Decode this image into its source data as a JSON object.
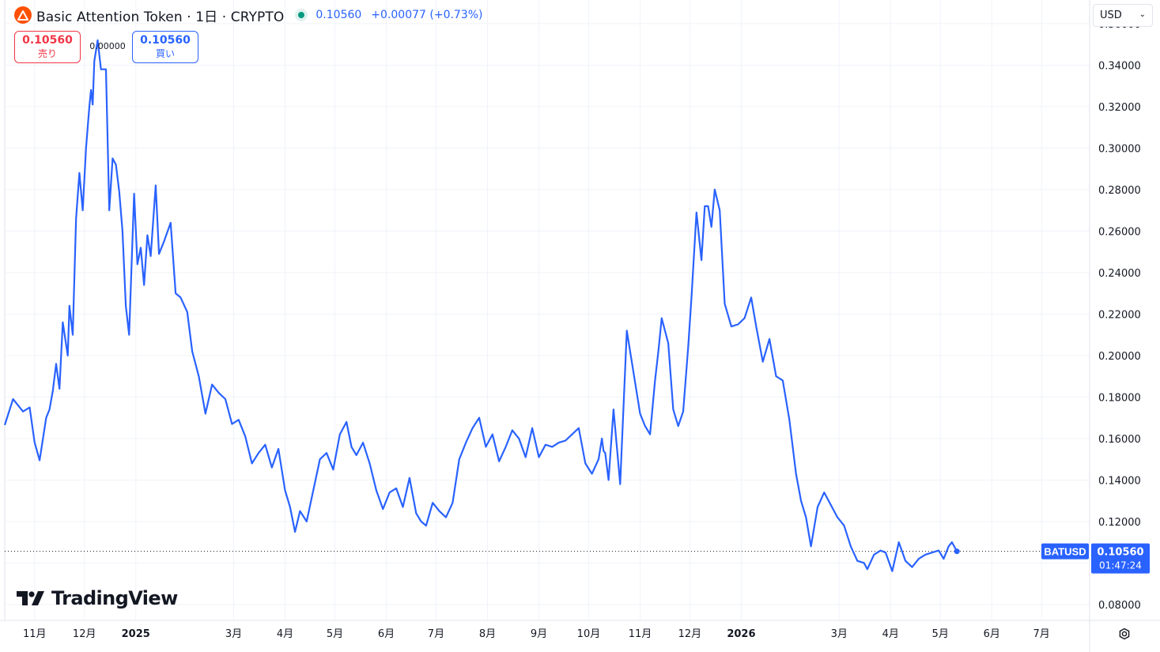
{
  "header": {
    "symbol_title": "Basic Attention Token · 1日 · CRYPTO",
    "last_price": "0.10560",
    "change": "+0.00077 (+0.73%)"
  },
  "trade": {
    "sell_price": "0.10560",
    "sell_label": "売り",
    "spread": "0.00000",
    "buy_price": "0.10560",
    "buy_label": "買い"
  },
  "currency": {
    "selected": "USD"
  },
  "last_label": {
    "symbol": "BATUSD",
    "price": "0.10560",
    "countdown": "01:47:24"
  },
  "branding": {
    "name": "TradingView"
  },
  "colors": {
    "line": "#2962ff",
    "sell": "#f23645",
    "buy": "#2962ff",
    "status": "#089981",
    "grid": "#f0f3fa",
    "brand": "#ff5000"
  },
  "chart_data": {
    "type": "line",
    "series": [
      {
        "name": "BATUSD",
        "x": [
          "2024-10-14",
          "2024-10-19",
          "2024-10-25",
          "2024-10-29",
          "2024-11-01",
          "2024-11-04",
          "2024-11-08",
          "2024-11-10",
          "2024-11-12",
          "2024-11-14",
          "2024-11-16",
          "2024-11-18",
          "2024-11-21",
          "2024-11-22",
          "2024-11-24",
          "2024-11-26",
          "2024-11-28",
          "2024-11-30",
          "2024-12-02",
          "2024-12-04",
          "2024-12-05",
          "2024-12-06",
          "2024-12-07",
          "2024-12-09",
          "2024-12-11",
          "2024-12-14",
          "2024-12-16",
          "2024-12-18",
          "2024-12-20",
          "2024-12-22",
          "2024-12-24",
          "2024-12-26",
          "2024-12-28",
          "2024-12-31",
          "2025-01-02",
          "2025-01-04",
          "2025-01-06",
          "2025-01-08",
          "2025-01-10",
          "2025-01-13",
          "2025-01-15",
          "2025-01-18",
          "2025-01-22",
          "2025-01-25",
          "2025-01-28",
          "2025-02-01",
          "2025-02-04",
          "2025-02-08",
          "2025-02-12",
          "2025-02-16",
          "2025-02-20",
          "2025-02-24",
          "2025-02-28",
          "2025-03-04",
          "2025-03-08",
          "2025-03-12",
          "2025-03-16",
          "2025-03-20",
          "2025-03-24",
          "2025-03-28",
          "2025-04-01",
          "2025-04-04",
          "2025-04-07",
          "2025-04-10",
          "2025-04-14",
          "2025-04-18",
          "2025-04-22",
          "2025-04-26",
          "2025-04-30",
          "2025-05-04",
          "2025-05-08",
          "2025-05-11",
          "2025-05-14",
          "2025-05-18",
          "2025-05-22",
          "2025-05-26",
          "2025-05-30",
          "2025-06-03",
          "2025-06-07",
          "2025-06-11",
          "2025-06-15",
          "2025-06-19",
          "2025-06-22",
          "2025-06-25",
          "2025-06-29",
          "2025-07-03",
          "2025-07-07",
          "2025-07-11",
          "2025-07-15",
          "2025-07-19",
          "2025-07-23",
          "2025-07-27",
          "2025-07-31",
          "2025-08-04",
          "2025-08-08",
          "2025-08-12",
          "2025-08-16",
          "2025-08-20",
          "2025-08-24",
          "2025-08-28",
          "2025-09-01",
          "2025-09-05",
          "2025-09-09",
          "2025-09-13",
          "2025-09-17",
          "2025-09-21",
          "2025-09-25",
          "2025-09-29",
          "2025-10-03",
          "2025-10-07",
          "2025-10-09",
          "2025-10-10",
          "2025-10-11",
          "2025-10-13",
          "2025-10-16",
          "2025-10-20",
          "2025-10-24",
          "2025-10-28",
          "2025-11-01",
          "2025-11-04",
          "2025-11-07",
          "2025-11-10",
          "2025-11-12",
          "2025-11-14",
          "2025-11-18",
          "2025-11-21",
          "2025-11-24",
          "2025-11-27",
          "2025-11-30",
          "2025-12-02",
          "2025-12-05",
          "2025-12-08",
          "2025-12-10",
          "2025-12-12",
          "2025-12-14",
          "2025-12-16",
          "2025-12-19",
          "2025-12-22",
          "2025-12-26",
          "2025-12-30",
          "2026-01-03",
          "2026-01-07",
          "2026-01-10",
          "2026-01-14",
          "2026-01-18",
          "2026-01-22",
          "2026-01-26",
          "2026-01-30",
          "2026-02-03",
          "2026-02-06",
          "2026-02-09",
          "2026-02-12",
          "2026-02-16",
          "2026-02-20",
          "2026-02-24",
          "2026-02-28",
          "2026-03-04",
          "2026-03-08",
          "2026-03-12",
          "2026-03-16",
          "2026-03-18",
          "2026-03-22",
          "2026-03-26",
          "2026-03-29",
          "2026-04-02",
          "2026-04-06",
          "2026-04-10",
          "2026-04-14",
          "2026-04-18",
          "2026-04-22",
          "2026-04-26",
          "2026-04-30",
          "2026-05-03",
          "2026-05-06",
          "2026-05-08",
          "2026-05-11"
        ],
        "y": [
          0.1665,
          0.179,
          0.173,
          0.175,
          0.158,
          0.1495,
          0.17,
          0.174,
          0.183,
          0.196,
          0.184,
          0.216,
          0.2,
          0.224,
          0.21,
          0.266,
          0.288,
          0.27,
          0.3,
          0.32,
          0.328,
          0.321,
          0.342,
          0.352,
          0.338,
          0.338,
          0.27,
          0.295,
          0.292,
          0.279,
          0.26,
          0.224,
          0.21,
          0.278,
          0.244,
          0.252,
          0.234,
          0.258,
          0.248,
          0.282,
          0.249,
          0.255,
          0.264,
          0.23,
          0.228,
          0.221,
          0.202,
          0.19,
          0.172,
          0.186,
          0.182,
          0.179,
          0.167,
          0.169,
          0.161,
          0.148,
          0.153,
          0.157,
          0.146,
          0.155,
          0.135,
          0.127,
          0.115,
          0.125,
          0.12,
          0.135,
          0.15,
          0.153,
          0.145,
          0.162,
          0.168,
          0.156,
          0.152,
          0.158,
          0.148,
          0.135,
          0.126,
          0.134,
          0.136,
          0.127,
          0.141,
          0.124,
          0.12,
          0.118,
          0.129,
          0.125,
          0.122,
          0.129,
          0.15,
          0.158,
          0.165,
          0.17,
          0.156,
          0.162,
          0.149,
          0.156,
          0.164,
          0.16,
          0.151,
          0.165,
          0.151,
          0.157,
          0.156,
          0.158,
          0.159,
          0.162,
          0.165,
          0.148,
          0.143,
          0.15,
          0.16,
          0.154,
          0.153,
          0.14,
          0.174,
          0.138,
          0.212,
          0.192,
          0.172,
          0.166,
          0.162,
          0.188,
          0.202,
          0.218,
          0.206,
          0.174,
          0.166,
          0.173,
          0.204,
          0.228,
          0.269,
          0.246,
          0.272,
          0.272,
          0.262,
          0.28,
          0.27,
          0.225,
          0.214,
          0.215,
          0.218,
          0.228,
          0.214,
          0.197,
          0.208,
          0.19,
          0.188,
          0.169,
          0.143,
          0.13,
          0.122,
          0.108,
          0.127,
          0.134,
          0.128,
          0.122,
          0.118,
          0.108,
          0.101,
          0.1,
          0.097,
          0.104,
          0.106,
          0.105,
          0.096,
          0.11,
          0.101,
          0.098,
          0.102,
          0.104,
          0.105,
          0.106,
          0.102,
          0.108,
          0.11,
          0.1056
        ]
      }
    ],
    "x_tick_labels": [
      {
        "date": "2024-11-01",
        "label": "11月"
      },
      {
        "date": "2024-12-01",
        "label": "12月"
      },
      {
        "date": "2025-01-01",
        "label": "2025"
      },
      {
        "date": "2025-03-01",
        "label": "3月"
      },
      {
        "date": "2025-04-01",
        "label": "4月"
      },
      {
        "date": "2025-05-01",
        "label": "5月"
      },
      {
        "date": "2025-06-01",
        "label": "6月"
      },
      {
        "date": "2025-07-01",
        "label": "7月"
      },
      {
        "date": "2025-08-01",
        "label": "8月"
      },
      {
        "date": "2025-09-01",
        "label": "9月"
      },
      {
        "date": "2025-10-01",
        "label": "10月"
      },
      {
        "date": "2025-11-01",
        "label": "11月"
      },
      {
        "date": "2025-12-01",
        "label": "12月"
      },
      {
        "date": "2026-01-01",
        "label": "2026"
      },
      {
        "date": "2026-03-01",
        "label": "3月"
      },
      {
        "date": "2026-04-01",
        "label": "4月"
      },
      {
        "date": "2026-05-01",
        "label": "5月"
      },
      {
        "date": "2026-06-01",
        "label": "6月"
      },
      {
        "date": "2026-07-01",
        "label": "7月"
      }
    ],
    "y_tick_values": [
      0.08,
      0.1,
      0.12,
      0.14,
      0.16,
      0.18,
      0.2,
      0.22,
      0.24,
      0.26,
      0.28,
      0.3,
      0.32,
      0.34,
      0.36
    ],
    "y_tick_labels": [
      "0.08000",
      "0.10000",
      "0.12000",
      "0.14000",
      "0.16000",
      "0.18000",
      "0.20000",
      "0.22000",
      "0.24000",
      "0.26000",
      "0.28000",
      "0.30000",
      "0.32000",
      "0.34000",
      "0.36000"
    ],
    "y_tick_shown": [
      true,
      false,
      true,
      true,
      true,
      true,
      true,
      true,
      true,
      true,
      true,
      true,
      true,
      true,
      true
    ],
    "xlim": [
      "2024-10-14",
      "2026-07-30"
    ],
    "ylim": [
      0.0727,
      0.3714
    ],
    "last_value": 0.1056,
    "grid": true,
    "legend": "none"
  }
}
